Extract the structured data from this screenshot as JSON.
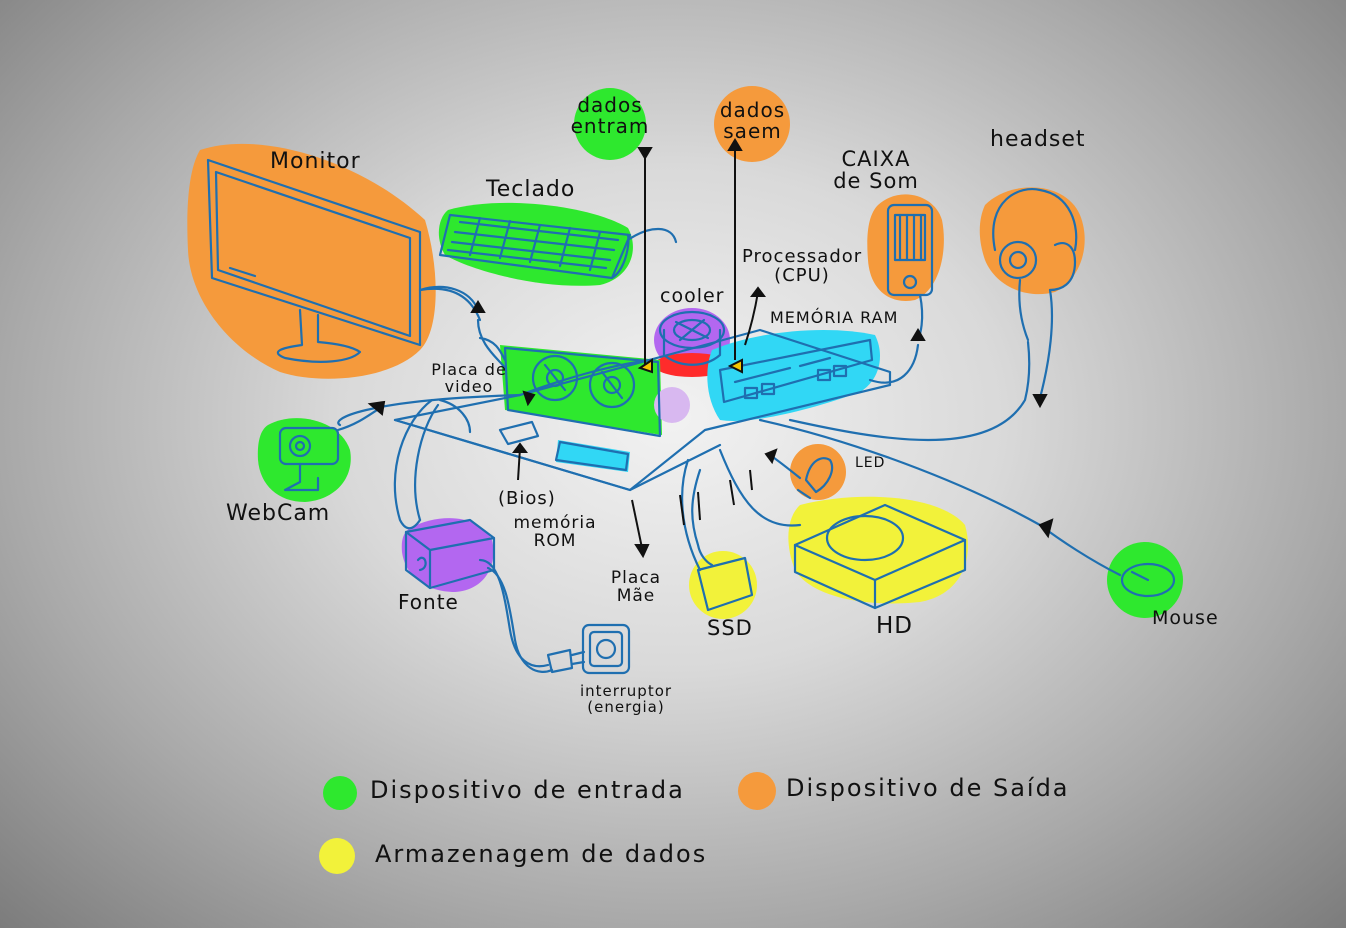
{
  "labels": {
    "monitor": "Monitor",
    "teclado": "Teclado",
    "dados_entram_1": "dados",
    "dados_entram_2": "entram",
    "dados_saem_1": "dados",
    "dados_saem_2": "saem",
    "caixa_1": "CAIXA",
    "caixa_2": "de Som",
    "headset": "headset",
    "processador_1": "Processador",
    "processador_2": "(CPU)",
    "cooler": "cooler",
    "memoria_ram": "MEMÓRIA   RAM",
    "placa_video_1": "Placa de",
    "placa_video_2": "video",
    "webcam": "WebCam",
    "led": "LED",
    "bios": "(Bios)",
    "rom_1": "memória",
    "rom_2": "ROM",
    "fonte": "Fonte",
    "placa_mae_1": "Placa",
    "placa_mae_2": "Mãe",
    "ssd": "SSD",
    "hd": "HD",
    "mouse": "Mouse",
    "interruptor_1": "interruptor",
    "interruptor_2": "(energia)"
  },
  "legend": [
    {
      "label": "Dispositivo de entrada",
      "color": "#2ee82e"
    },
    {
      "label": "Dispositivo de Saída",
      "color": "#f59a3c"
    },
    {
      "label": "Armazenagem de dados",
      "color": "#f2f23a"
    }
  ],
  "colors": {
    "input": "#2ee82e",
    "output": "#f59a3c",
    "storage": "#f2f23a",
    "line": "#1f6fb0",
    "cyan": "#31d7f5",
    "purple": "#b367f0",
    "red": "#ff2b2b"
  }
}
